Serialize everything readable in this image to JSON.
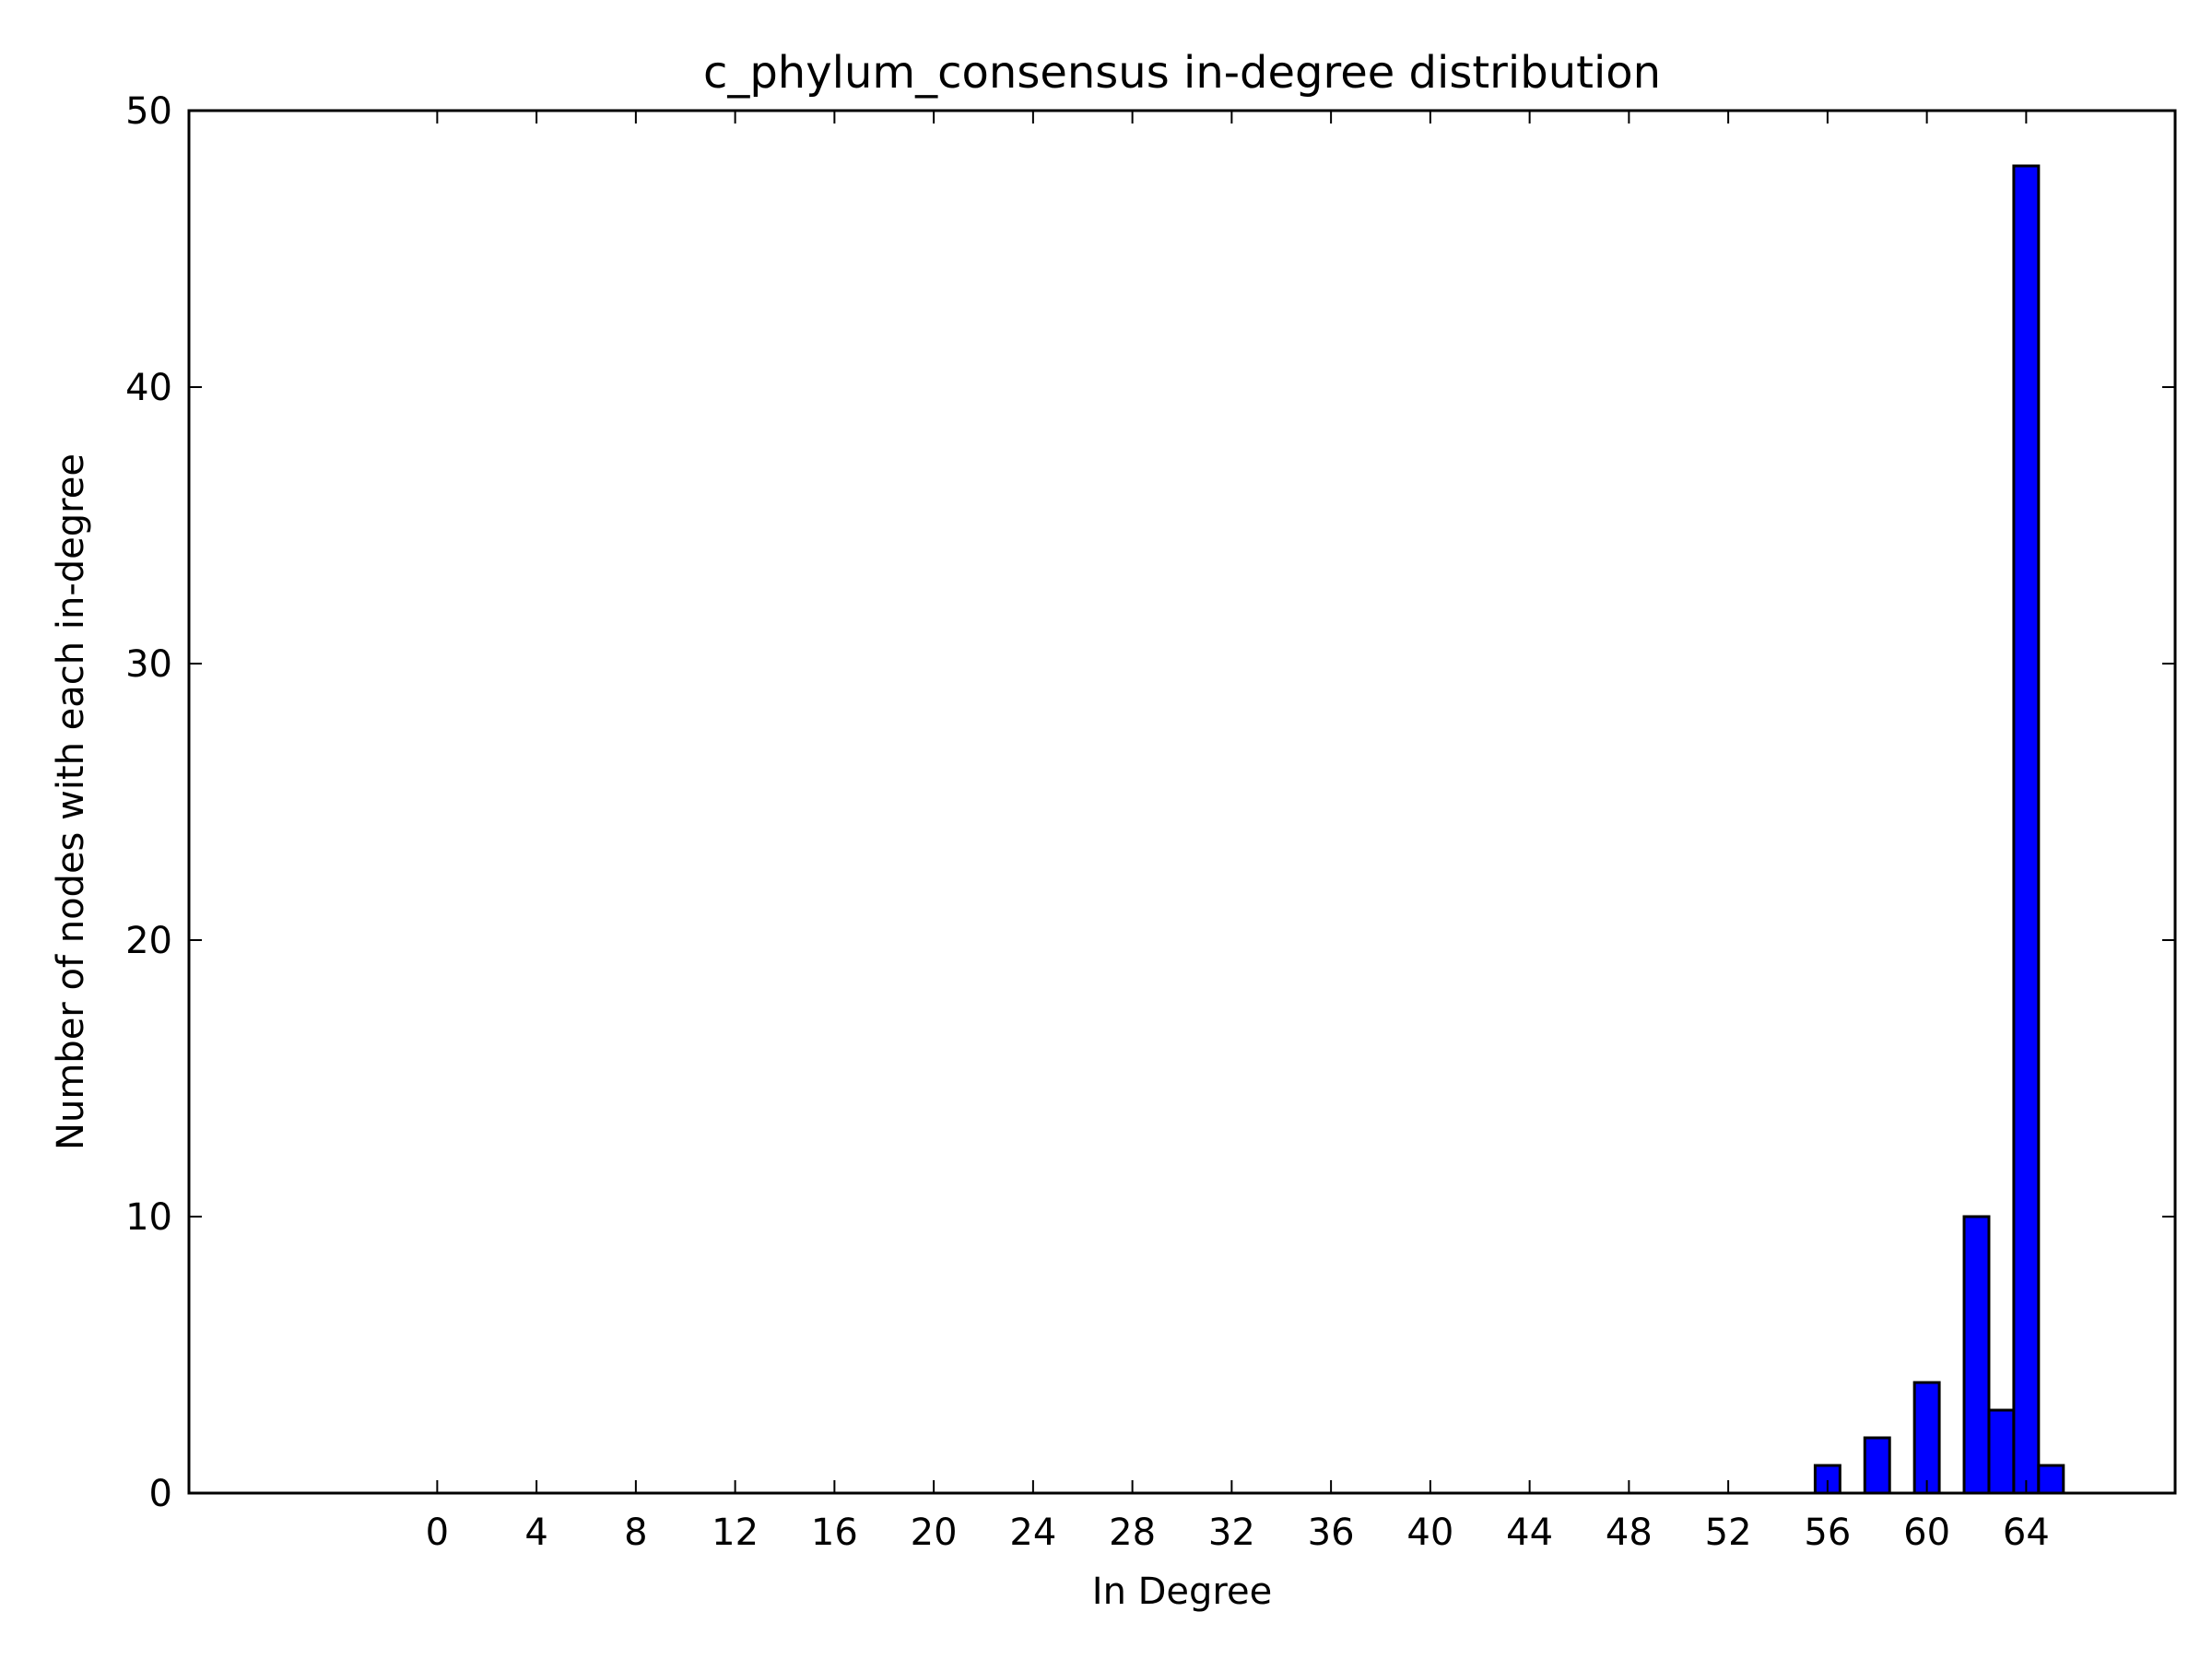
{
  "chart_data": {
    "type": "bar",
    "title": "c_phylum_consensus in-degree distribution",
    "xlabel": "In Degree",
    "ylabel": "Number of nodes with each in-degree",
    "xlim": [
      -10,
      70
    ],
    "ylim": [
      0,
      50
    ],
    "x_ticks": [
      "0",
      "4",
      "8",
      "12",
      "16",
      "20",
      "24",
      "28",
      "32",
      "36",
      "40",
      "44",
      "48",
      "52",
      "56",
      "60",
      "64"
    ],
    "y_ticks": [
      "0",
      "10",
      "20",
      "30",
      "40",
      "50"
    ],
    "bar_width": 1,
    "bar_color": "#0000ff",
    "edge_color": "#000000",
    "grid": false,
    "legend": "none",
    "bars": [
      {
        "x": 56,
        "value": 1
      },
      {
        "x": 58,
        "value": 2
      },
      {
        "x": 60,
        "value": 4
      },
      {
        "x": 62,
        "value": 10
      },
      {
        "x": 63,
        "value": 3
      },
      {
        "x": 64,
        "value": 48
      },
      {
        "x": 65,
        "value": 1
      }
    ]
  }
}
